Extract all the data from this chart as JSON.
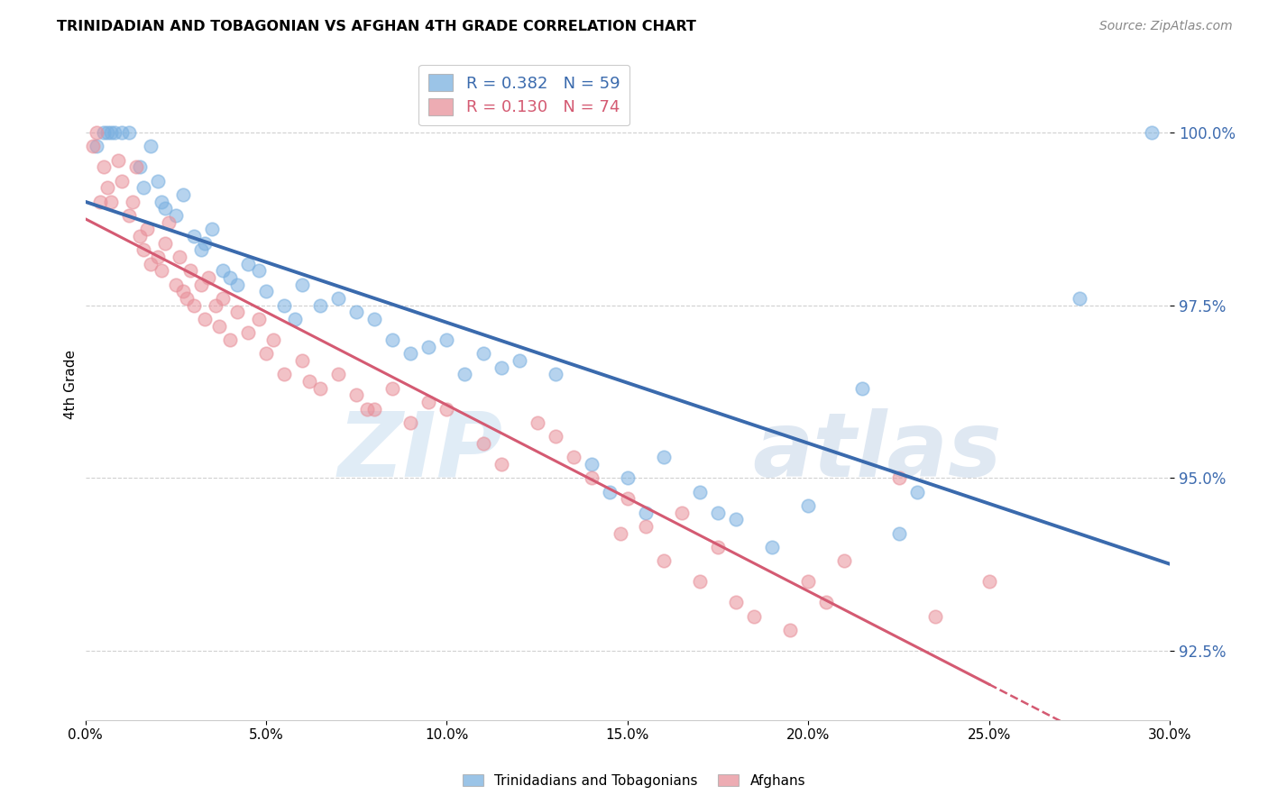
{
  "title": "TRINIDADIAN AND TOBAGONIAN VS AFGHAN 4TH GRADE CORRELATION CHART",
  "source": "Source: ZipAtlas.com",
  "ylabel": "4th Grade",
  "blue_color": "#7ab0e0",
  "pink_color": "#e8909a",
  "blue_line_color": "#3a6aad",
  "pink_line_color": "#d45a72",
  "blue_scatter": [
    [
      0.3,
      99.8
    ],
    [
      0.5,
      100.0
    ],
    [
      0.6,
      100.0
    ],
    [
      0.7,
      100.0
    ],
    [
      0.8,
      100.0
    ],
    [
      1.0,
      100.0
    ],
    [
      1.2,
      100.0
    ],
    [
      1.5,
      99.5
    ],
    [
      1.6,
      99.2
    ],
    [
      2.0,
      99.3
    ],
    [
      2.1,
      99.0
    ],
    [
      2.2,
      98.9
    ],
    [
      2.5,
      98.8
    ],
    [
      2.7,
      99.1
    ],
    [
      3.0,
      98.5
    ],
    [
      3.2,
      98.3
    ],
    [
      3.3,
      98.4
    ],
    [
      3.8,
      98.0
    ],
    [
      4.0,
      97.9
    ],
    [
      4.2,
      97.8
    ],
    [
      4.5,
      98.1
    ],
    [
      4.8,
      98.0
    ],
    [
      5.0,
      97.7
    ],
    [
      5.5,
      97.5
    ],
    [
      6.0,
      97.8
    ],
    [
      6.5,
      97.5
    ],
    [
      7.0,
      97.6
    ],
    [
      7.5,
      97.4
    ],
    [
      8.0,
      97.3
    ],
    [
      8.5,
      97.0
    ],
    [
      9.0,
      96.8
    ],
    [
      10.0,
      97.0
    ],
    [
      10.5,
      96.5
    ],
    [
      11.0,
      96.8
    ],
    [
      11.5,
      96.6
    ],
    [
      13.0,
      96.5
    ],
    [
      14.0,
      95.2
    ],
    [
      14.5,
      94.8
    ],
    [
      15.0,
      95.0
    ],
    [
      15.5,
      94.5
    ],
    [
      16.0,
      95.3
    ],
    [
      17.0,
      94.8
    ],
    [
      17.5,
      94.5
    ],
    [
      18.0,
      94.4
    ],
    [
      20.0,
      94.6
    ],
    [
      21.5,
      96.3
    ],
    [
      22.5,
      94.2
    ],
    [
      27.5,
      97.6
    ],
    [
      29.5,
      100.0
    ],
    [
      1.8,
      99.8
    ],
    [
      3.5,
      98.6
    ],
    [
      5.8,
      97.3
    ],
    [
      9.5,
      96.9
    ],
    [
      12.0,
      96.7
    ],
    [
      19.0,
      94.0
    ],
    [
      23.0,
      94.8
    ]
  ],
  "pink_scatter": [
    [
      0.2,
      99.8
    ],
    [
      0.3,
      100.0
    ],
    [
      0.5,
      99.5
    ],
    [
      0.6,
      99.2
    ],
    [
      0.7,
      99.0
    ],
    [
      0.9,
      99.6
    ],
    [
      1.0,
      99.3
    ],
    [
      1.2,
      98.8
    ],
    [
      1.3,
      99.0
    ],
    [
      1.4,
      99.5
    ],
    [
      1.5,
      98.5
    ],
    [
      1.6,
      98.3
    ],
    [
      1.7,
      98.6
    ],
    [
      2.0,
      98.2
    ],
    [
      2.1,
      98.0
    ],
    [
      2.2,
      98.4
    ],
    [
      2.3,
      98.7
    ],
    [
      2.5,
      97.8
    ],
    [
      2.6,
      98.2
    ],
    [
      2.8,
      97.6
    ],
    [
      2.9,
      98.0
    ],
    [
      3.0,
      97.5
    ],
    [
      3.2,
      97.8
    ],
    [
      3.3,
      97.3
    ],
    [
      3.4,
      97.9
    ],
    [
      3.7,
      97.2
    ],
    [
      3.8,
      97.6
    ],
    [
      4.0,
      97.0
    ],
    [
      4.2,
      97.4
    ],
    [
      4.5,
      97.1
    ],
    [
      5.0,
      96.8
    ],
    [
      5.2,
      97.0
    ],
    [
      5.5,
      96.5
    ],
    [
      6.0,
      96.7
    ],
    [
      6.5,
      96.3
    ],
    [
      7.0,
      96.5
    ],
    [
      7.5,
      96.2
    ],
    [
      8.0,
      96.0
    ],
    [
      8.5,
      96.3
    ],
    [
      9.0,
      95.8
    ],
    [
      10.0,
      96.0
    ],
    [
      11.0,
      95.5
    ],
    [
      12.5,
      95.8
    ],
    [
      13.5,
      95.3
    ],
    [
      14.0,
      95.0
    ],
    [
      15.0,
      94.7
    ],
    [
      16.5,
      94.5
    ],
    [
      17.0,
      93.5
    ],
    [
      17.5,
      94.0
    ],
    [
      18.0,
      93.2
    ],
    [
      19.5,
      92.8
    ],
    [
      20.0,
      93.5
    ],
    [
      21.0,
      93.8
    ],
    [
      22.5,
      95.0
    ],
    [
      23.5,
      93.0
    ],
    [
      25.0,
      93.5
    ],
    [
      1.8,
      98.1
    ],
    [
      4.8,
      97.3
    ],
    [
      9.5,
      96.1
    ],
    [
      13.0,
      95.6
    ],
    [
      16.0,
      93.8
    ],
    [
      18.5,
      93.0
    ],
    [
      0.4,
      99.0
    ],
    [
      2.7,
      97.7
    ],
    [
      6.2,
      96.4
    ],
    [
      11.5,
      95.2
    ],
    [
      14.8,
      94.2
    ],
    [
      20.5,
      93.2
    ],
    [
      3.6,
      97.5
    ],
    [
      7.8,
      96.0
    ],
    [
      15.5,
      94.3
    ]
  ],
  "xlim": [
    0.0,
    30.0
  ],
  "ylim": [
    91.5,
    101.2
  ],
  "yticks": [
    92.5,
    95.0,
    97.5,
    100.0
  ],
  "xticks": [
    0.0,
    5.0,
    10.0,
    15.0,
    20.0,
    25.0,
    30.0
  ],
  "xtick_labels": [
    "0.0%",
    "5.0%",
    "10.0%",
    "15.0%",
    "20.0%",
    "25.0%",
    "30.0%"
  ],
  "watermark_zip": "ZIP",
  "watermark_atlas": "atlas",
  "background_color": "#ffffff"
}
